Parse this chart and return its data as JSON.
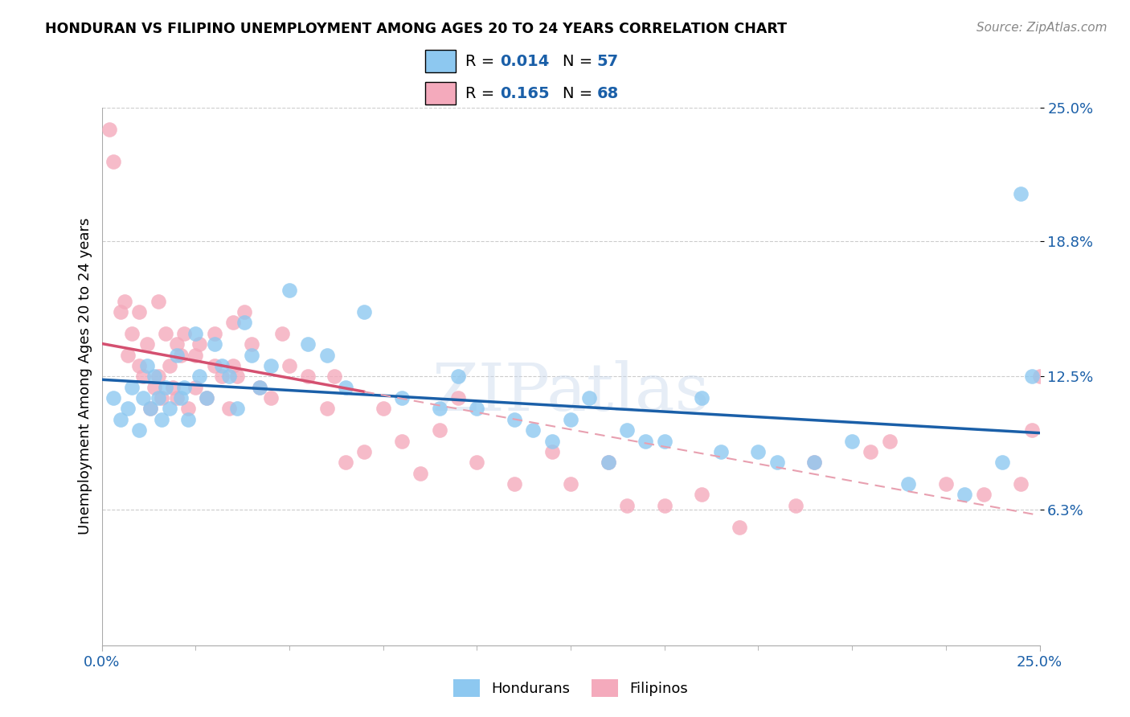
{
  "title": "HONDURAN VS FILIPINO UNEMPLOYMENT AMONG AGES 20 TO 24 YEARS CORRELATION CHART",
  "source": "Source: ZipAtlas.com",
  "ylabel": "Unemployment Among Ages 20 to 24 years",
  "xlim": [
    0,
    25
  ],
  "ylim": [
    0,
    25
  ],
  "yticks": [
    6.3,
    12.5,
    18.8,
    25.0
  ],
  "ytick_labels": [
    "6.3%",
    "12.5%",
    "18.8%",
    "25.0%"
  ],
  "blue_color": "#8DC8F0",
  "pink_color": "#F4AABC",
  "trend_blue": "#1A5FA8",
  "trend_pink": "#D45070",
  "trend_pink_dash": "#E8A0B0",
  "background": "#FFFFFF",
  "grid_color": "#CCCCCC",
  "honduran_x": [
    0.3,
    0.5,
    0.7,
    0.8,
    1.0,
    1.1,
    1.2,
    1.3,
    1.4,
    1.5,
    1.6,
    1.7,
    1.8,
    2.0,
    2.1,
    2.2,
    2.3,
    2.5,
    2.6,
    2.8,
    3.0,
    3.2,
    3.4,
    3.6,
    3.8,
    4.0,
    4.2,
    4.5,
    5.0,
    5.5,
    6.0,
    6.5,
    7.0,
    8.0,
    9.0,
    9.5,
    10.0,
    11.0,
    11.5,
    12.0,
    12.5,
    13.0,
    13.5,
    14.0,
    14.5,
    15.0,
    16.0,
    16.5,
    17.5,
    18.0,
    19.0,
    20.0,
    21.5,
    23.0,
    24.0,
    24.5,
    24.8
  ],
  "honduran_y": [
    11.5,
    10.5,
    11.0,
    12.0,
    10.0,
    11.5,
    13.0,
    11.0,
    12.5,
    11.5,
    10.5,
    12.0,
    11.0,
    13.5,
    11.5,
    12.0,
    10.5,
    14.5,
    12.5,
    11.5,
    14.0,
    13.0,
    12.5,
    11.0,
    15.0,
    13.5,
    12.0,
    13.0,
    16.5,
    14.0,
    13.5,
    12.0,
    15.5,
    11.5,
    11.0,
    12.5,
    11.0,
    10.5,
    10.0,
    9.5,
    10.5,
    11.5,
    8.5,
    10.0,
    9.5,
    9.5,
    11.5,
    9.0,
    9.0,
    8.5,
    8.5,
    9.5,
    7.5,
    7.0,
    8.5,
    21.0,
    12.5
  ],
  "filipino_x": [
    0.2,
    0.3,
    0.5,
    0.6,
    0.7,
    0.8,
    1.0,
    1.0,
    1.1,
    1.2,
    1.3,
    1.4,
    1.5,
    1.5,
    1.6,
    1.7,
    1.8,
    1.9,
    2.0,
    2.0,
    2.1,
    2.2,
    2.3,
    2.5,
    2.5,
    2.6,
    2.8,
    3.0,
    3.0,
    3.2,
    3.4,
    3.5,
    3.6,
    3.8,
    4.0,
    4.2,
    4.5,
    5.0,
    5.5,
    6.0,
    6.5,
    7.0,
    7.5,
    8.0,
    8.5,
    9.0,
    9.5,
    10.0,
    11.0,
    12.0,
    12.5,
    13.5,
    14.0,
    15.0,
    16.0,
    17.0,
    18.5,
    19.0,
    20.5,
    21.0,
    22.5,
    23.5,
    24.5,
    24.8,
    25.0,
    3.5,
    4.8,
    6.2
  ],
  "filipino_y": [
    24.0,
    22.5,
    15.5,
    16.0,
    13.5,
    14.5,
    15.5,
    13.0,
    12.5,
    14.0,
    11.0,
    12.0,
    16.0,
    12.5,
    11.5,
    14.5,
    13.0,
    12.0,
    14.0,
    11.5,
    13.5,
    14.5,
    11.0,
    13.5,
    12.0,
    14.0,
    11.5,
    14.5,
    13.0,
    12.5,
    11.0,
    13.0,
    12.5,
    15.5,
    14.0,
    12.0,
    11.5,
    13.0,
    12.5,
    11.0,
    8.5,
    9.0,
    11.0,
    9.5,
    8.0,
    10.0,
    11.5,
    8.5,
    7.5,
    9.0,
    7.5,
    8.5,
    6.5,
    6.5,
    7.0,
    5.5,
    6.5,
    8.5,
    9.0,
    9.5,
    7.5,
    7.0,
    7.5,
    10.0,
    12.5,
    15.0,
    14.5,
    12.5
  ]
}
